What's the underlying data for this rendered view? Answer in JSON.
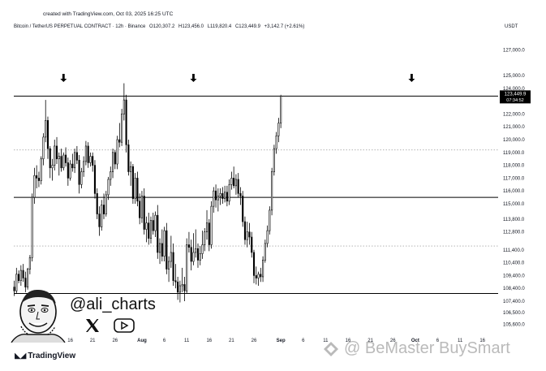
{
  "created_text": "created with TradingView.com, Oct 03, 2025 16:25 UTC",
  "header": {
    "symbol": "Bitcoin / TetherUS PERPETUAL CONTRACT · 12h · Binance",
    "open": "O120,307.2",
    "high": "H123,456.0",
    "low": "L119,820.4",
    "close": "C123,449.9",
    "change": "+3,142.7 (+2.61%)",
    "currency": "USDT"
  },
  "price_badge": {
    "value": "123,449.9",
    "countdown": "07:34:52"
  },
  "handle": "@ali_charts",
  "tradingview_logo": "TradingView",
  "watermark": "@ BeMaster BuySmart",
  "icons": [
    "down-arrow-icon",
    "x-logo-icon",
    "youtube-icon",
    "avatar-caricature",
    "tradingview-logo-icon"
  ],
  "colors": {
    "candle": "#000000",
    "background": "#ffffff",
    "text": "#131722",
    "dotted_line": "#9e9e9e"
  },
  "chart_data": {
    "type": "candlestick",
    "ylim": [
      104800,
      128300
    ],
    "y_ticks": [
      127000,
      125000,
      124000,
      122000,
      121000,
      120000,
      119000,
      118000,
      117000,
      116000,
      115000,
      113800,
      112800,
      111400,
      110400,
      109400,
      108400,
      107400,
      106500,
      105600
    ],
    "y_tick_labels": [
      "127,000.0",
      "125,000.0",
      "124,000.0",
      "122,000.0",
      "121,000.0",
      "120,000.0",
      "119,000.0",
      "118,000.0",
      "117,000.0",
      "116,000.0",
      "115,000.0",
      "113,800.0",
      "112,800.0",
      "111,400.0",
      "110,400.0",
      "109,400.0",
      "108,400.0",
      "107,400.0",
      "106,500.0",
      "105,600.0"
    ],
    "x_ticks": [
      {
        "label": "16",
        "day": 16
      },
      {
        "label": "21",
        "day": 21
      },
      {
        "label": "26",
        "day": 26
      },
      {
        "label": "Aug",
        "day": 32,
        "bold": true
      },
      {
        "label": "6",
        "day": 37
      },
      {
        "label": "11",
        "day": 42
      },
      {
        "label": "16",
        "day": 47
      },
      {
        "label": "21",
        "day": 52
      },
      {
        "label": "26",
        "day": 57
      },
      {
        "label": "Sep",
        "day": 63,
        "bold": true
      },
      {
        "label": "6",
        "day": 68
      },
      {
        "label": "11",
        "day": 73
      },
      {
        "label": "16",
        "day": 78
      },
      {
        "label": "21",
        "day": 83
      },
      {
        "label": "26",
        "day": 88
      },
      {
        "label": "Oct",
        "day": 93,
        "bold": true
      },
      {
        "label": "6",
        "day": 98
      },
      {
        "label": "11",
        "day": 103
      },
      {
        "label": "16",
        "day": 108
      }
    ],
    "x_range": [
      3.4,
      111.5
    ],
    "horizontal_levels": [
      {
        "price": 123400,
        "style": "solid"
      },
      {
        "price": 119200,
        "style": "dotted"
      },
      {
        "price": 115500,
        "style": "solid"
      },
      {
        "price": 111700,
        "style": "dotted"
      },
      {
        "price": 108000,
        "style": "solid"
      }
    ],
    "markers": [
      {
        "day": 14.5,
        "price": 124500,
        "type": "down-arrow"
      },
      {
        "day": 43.5,
        "price": 124500,
        "type": "down-arrow"
      },
      {
        "day": 92.2,
        "price": 124500,
        "type": "down-arrow"
      }
    ],
    "start_day": 3.5,
    "step_days": 0.5,
    "ohlc": [
      [
        108500,
        109000,
        107800,
        108200
      ],
      [
        108200,
        110000,
        108000,
        109500
      ],
      [
        109500,
        109800,
        108800,
        109000
      ],
      [
        109000,
        110200,
        108600,
        109800
      ],
      [
        109800,
        110300,
        108900,
        109200
      ],
      [
        109200,
        109700,
        108100,
        108500
      ],
      [
        108500,
        110000,
        108300,
        109900
      ],
      [
        109900,
        111000,
        109500,
        110800
      ],
      [
        110800,
        115800,
        110500,
        115500
      ],
      [
        115500,
        117800,
        115000,
        117200
      ],
      [
        117200,
        118000,
        116200,
        117000
      ],
      [
        117000,
        117500,
        116300,
        116800
      ],
      [
        116800,
        118700,
        116500,
        118500
      ],
      [
        118500,
        120500,
        118000,
        120200
      ],
      [
        120200,
        123100,
        119800,
        121500
      ],
      [
        121500,
        121800,
        118500,
        119300
      ],
      [
        119300,
        119500,
        117000,
        117800
      ],
      [
        117800,
        118500,
        116800,
        118000
      ],
      [
        118000,
        120000,
        117600,
        119500
      ],
      [
        119500,
        120200,
        118100,
        118500
      ],
      [
        118500,
        119000,
        117200,
        118700
      ],
      [
        118700,
        119300,
        117500,
        117800
      ],
      [
        117800,
        119000,
        117600,
        118800
      ],
      [
        118800,
        119400,
        117900,
        118200
      ],
      [
        118200,
        118600,
        116400,
        117000
      ],
      [
        117000,
        118400,
        116800,
        118100
      ],
      [
        118100,
        118900,
        117500,
        117800
      ],
      [
        117800,
        119300,
        117400,
        119000
      ],
      [
        119000,
        119500,
        118100,
        118400
      ],
      [
        118400,
        118800,
        115800,
        116500
      ],
      [
        116500,
        117800,
        116200,
        117500
      ],
      [
        117500,
        118700,
        117100,
        118300
      ],
      [
        118300,
        119900,
        118000,
        119500
      ],
      [
        119500,
        119800,
        117800,
        118200
      ],
      [
        118200,
        119000,
        117900,
        118700
      ],
      [
        118700,
        119000,
        117500,
        118000
      ],
      [
        118000,
        118400,
        115400,
        115800
      ],
      [
        115800,
        116200,
        113800,
        114200
      ],
      [
        114200,
        114800,
        112500,
        113200
      ],
      [
        113200,
        115300,
        112900,
        114900
      ],
      [
        114900,
        115800,
        113800,
        114200
      ],
      [
        114200,
        116000,
        114000,
        115700
      ],
      [
        115700,
        117100,
        115300,
        116900
      ],
      [
        116900,
        117900,
        116400,
        117500
      ],
      [
        117500,
        119300,
        117000,
        119000
      ],
      [
        119000,
        119200,
        117700,
        118100
      ],
      [
        118100,
        120300,
        117700,
        120000
      ],
      [
        120000,
        121300,
        119400,
        119800
      ],
      [
        119800,
        122400,
        119500,
        122000
      ],
      [
        122000,
        124400,
        121500,
        123100
      ],
      [
        123100,
        123500,
        119000,
        119600
      ],
      [
        119600,
        120000,
        117200,
        117500
      ],
      [
        117500,
        118300,
        116400,
        117900
      ],
      [
        117900,
        118100,
        115000,
        115400
      ],
      [
        115400,
        117400,
        115000,
        117000
      ],
      [
        117000,
        117500,
        114800,
        115200
      ],
      [
        115200,
        115800,
        113400,
        113900
      ],
      [
        113900,
        116000,
        113500,
        115600
      ],
      [
        115600,
        116200,
        112600,
        113000
      ],
      [
        113000,
        114000,
        112000,
        113500
      ],
      [
        113500,
        114300,
        111800,
        112300
      ],
      [
        112300,
        114000,
        111900,
        113700
      ],
      [
        113700,
        114300,
        112600,
        112900
      ],
      [
        112900,
        114400,
        112400,
        114100
      ],
      [
        114100,
        114900,
        110700,
        111200
      ],
      [
        111200,
        112300,
        110300,
        111900
      ],
      [
        111900,
        113000,
        110500,
        110900
      ],
      [
        110900,
        113200,
        110500,
        112900
      ],
      [
        112900,
        113500,
        109500,
        109900
      ],
      [
        109900,
        110900,
        108900,
        110500
      ],
      [
        110500,
        112500,
        110000,
        111200
      ],
      [
        111200,
        111900,
        108600,
        109000
      ],
      [
        109000,
        110300,
        108400,
        108900
      ],
      [
        108900,
        109300,
        107500,
        108100
      ],
      [
        108100,
        109000,
        107300,
        108600
      ],
      [
        108600,
        110000,
        108100,
        108700
      ],
      [
        108700,
        109300,
        107400,
        108200
      ],
      [
        108200,
        112300,
        108000,
        111800
      ],
      [
        111800,
        112800,
        111200,
        111600
      ],
      [
        111600,
        112200,
        109800,
        110500
      ],
      [
        110500,
        112700,
        110200,
        111200
      ],
      [
        111200,
        113000,
        110800,
        111500
      ],
      [
        111500,
        111900,
        110000,
        110600
      ],
      [
        110600,
        111700,
        110200,
        111100
      ],
      [
        111100,
        112900,
        110700,
        111800
      ],
      [
        111800,
        113100,
        111300,
        112800
      ],
      [
        112800,
        114500,
        112200,
        113500
      ],
      [
        113500,
        113800,
        111300,
        111800
      ],
      [
        111800,
        115200,
        111500,
        114800
      ],
      [
        114800,
        116300,
        114300,
        116000
      ],
      [
        116000,
        116500,
        114700,
        115300
      ],
      [
        115300,
        116200,
        114400,
        115600
      ],
      [
        115600,
        116200,
        114900,
        115800
      ],
      [
        115800,
        116300,
        115000,
        115400
      ],
      [
        115400,
        116400,
        115100,
        115900
      ],
      [
        115900,
        116400,
        114800,
        115200
      ],
      [
        115200,
        116900,
        114900,
        116500
      ],
      [
        116500,
        117500,
        116100,
        117000
      ],
      [
        117000,
        117900,
        116200,
        116400
      ],
      [
        116400,
        117300,
        115700,
        116900
      ],
      [
        116900,
        117400,
        115500,
        115800
      ],
      [
        115800,
        116300,
        114900,
        115600
      ],
      [
        115600,
        116000,
        113200,
        113600
      ],
      [
        113600,
        114000,
        111800,
        112200
      ],
      [
        112200,
        113600,
        111600,
        112800
      ],
      [
        112800,
        113500,
        111800,
        112400
      ],
      [
        112400,
        112800,
        110800,
        111200
      ],
      [
        111200,
        111400,
        108800,
        109400
      ],
      [
        109400,
        110100,
        108700,
        109200
      ],
      [
        109200,
        109700,
        108600,
        109500
      ],
      [
        109500,
        110000,
        108900,
        109300
      ],
      [
        109300,
        110900,
        108900,
        110600
      ],
      [
        110600,
        112200,
        110400,
        111900
      ],
      [
        111900,
        113300,
        111600,
        112900
      ],
      [
        112900,
        114800,
        112600,
        114500
      ],
      [
        114500,
        117800,
        114100,
        117500
      ],
      [
        117500,
        119600,
        117200,
        119300
      ],
      [
        119300,
        120600,
        118900,
        120300
      ],
      [
        120300,
        121700,
        119800,
        121300
      ],
      [
        121300,
        123500,
        120900,
        123400
      ]
    ]
  }
}
